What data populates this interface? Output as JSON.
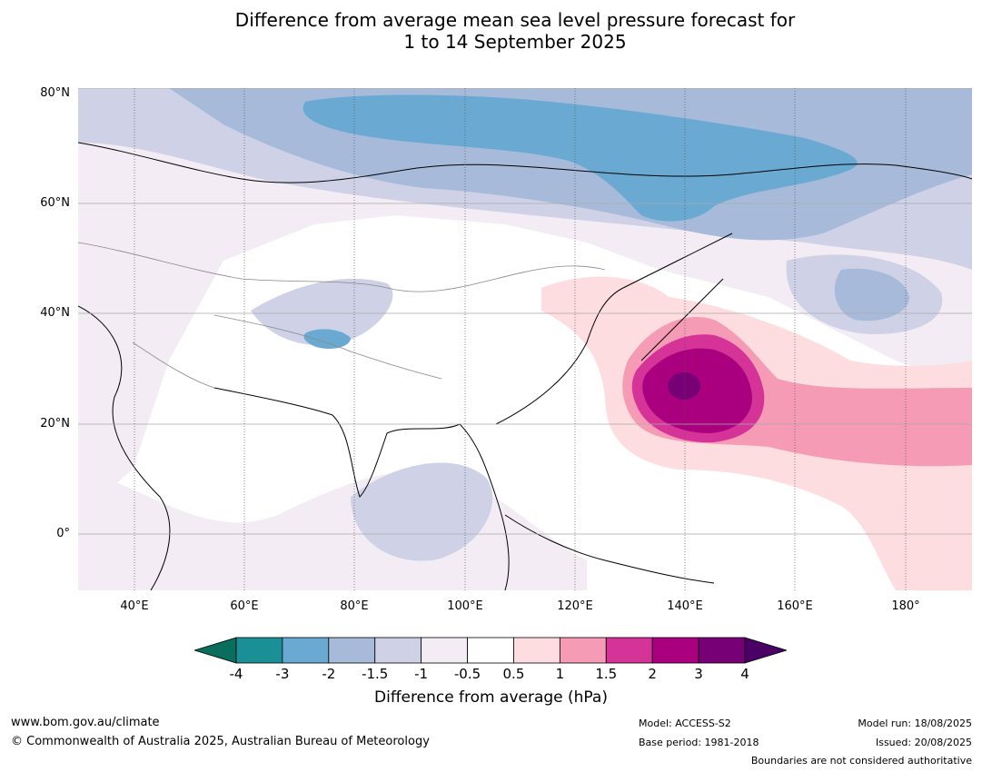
{
  "title": {
    "line1": "Difference from average mean sea level pressure forecast for",
    "line2": "1 to 14 September 2025"
  },
  "map": {
    "lat_labels": [
      "80°N",
      "60°N",
      "40°N",
      "20°N",
      "0°"
    ],
    "lon_labels": [
      "40°E",
      "60°E",
      "80°E",
      "100°E",
      "120°E",
      "140°E",
      "160°E",
      "180°"
    ],
    "regions": [
      {
        "name": "high-pressure-core",
        "value": "4",
        "color": "#770077"
      },
      {
        "name": "high-pressure-center",
        "value": "3",
        "color": "#AA0080"
      },
      {
        "name": "high-pressure-ring",
        "value": "2",
        "color": "#D63399"
      },
      {
        "name": "high-pressure-band",
        "value": "1.5",
        "color": "#F59BB6"
      },
      {
        "name": "positive-anomaly",
        "value": "0.5",
        "color": "#FDDDDF"
      },
      {
        "name": "arctic-low",
        "value": "-2",
        "color": "#6AAAD2"
      },
      {
        "name": "northern-low",
        "value": "-1.5",
        "color": "#A7BAD9"
      }
    ]
  },
  "colorbar": {
    "ticks": [
      "-4",
      "-3",
      "-2",
      "-1.5",
      "-1",
      "-0.5",
      "0.5",
      "1",
      "1.5",
      "2",
      "3",
      "4"
    ],
    "colors": [
      "#1A8F96",
      "#6AAAD2",
      "#A7BAD9",
      "#CFD2E6",
      "#F3ECF5",
      "#FFFFFF",
      "#FDDDDF",
      "#F59BB6",
      "#D63399",
      "#AA0080",
      "#770077"
    ],
    "extend_low_color": "#0A6E5E",
    "extend_high_color": "#4B0066",
    "label": "Difference from average (hPa)"
  },
  "footer": {
    "website": "www.bom.gov.au/climate",
    "copyright": "© Commonwealth of Australia 2025, Australian Bureau of Meteorology",
    "model": "Model: ACCESS-S2",
    "base_period": "Base period: 1981-2018",
    "model_run": "Model run: 18/08/2025",
    "issued": "Issued: 20/08/2025",
    "disclaimer": "Boundaries are not considered authoritative"
  }
}
